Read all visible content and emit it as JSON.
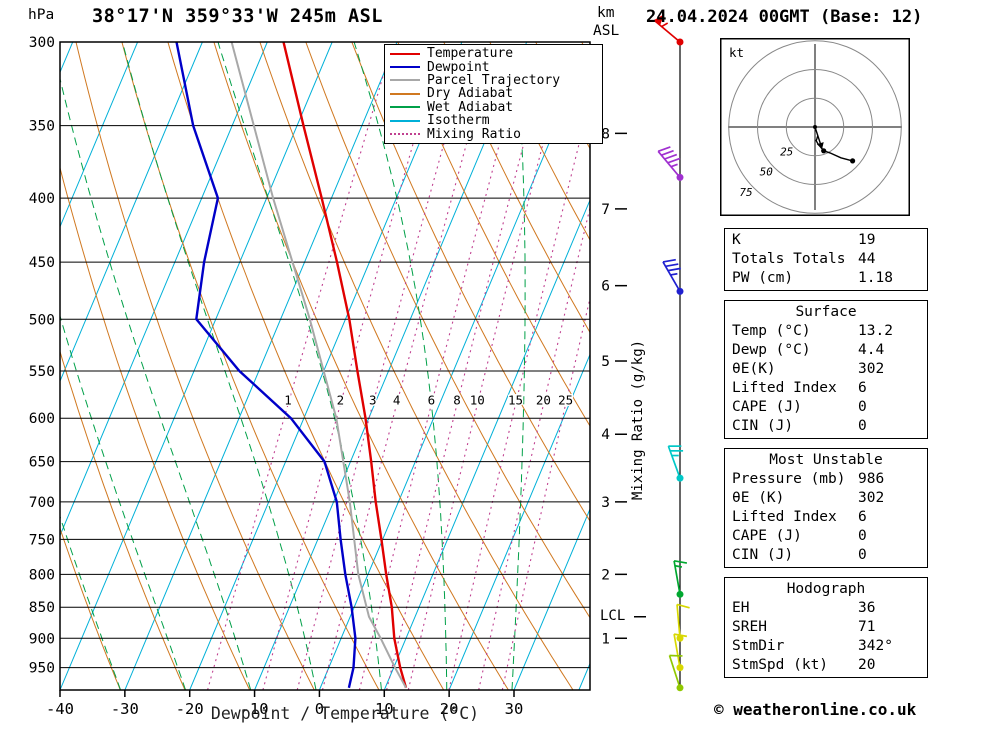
{
  "header": {
    "pressure_unit": "hPa",
    "title": "38°17'N 359°33'W 245m ASL",
    "km_label": "km",
    "asl_label": "ASL",
    "date_title": "24.04.2024 00GMT (Base: 12)"
  },
  "labels": {
    "mixing_ratio_axis": "Mixing Ratio (g/kg)",
    "lcl": "LCL",
    "xaxis": "Dewpoint / Temperature (°C)"
  },
  "footer": {
    "copyright": "© weatheronline.co.uk"
  },
  "legend": [
    {
      "label": "Temperature",
      "color": "#e00000",
      "style": "solid"
    },
    {
      "label": "Dewpoint",
      "color": "#0000c8",
      "style": "solid"
    },
    {
      "label": "Parcel Trajectory",
      "color": "#a8a8a8",
      "style": "solid"
    },
    {
      "label": "Dry Adiabat",
      "color": "#d07820",
      "style": "solid"
    },
    {
      "label": "Wet Adiabat",
      "color": "#00a048",
      "style": "solid"
    },
    {
      "label": "Isotherm",
      "color": "#00b0d8",
      "style": "solid"
    },
    {
      "label": "Mixing Ratio",
      "color": "#c04090",
      "style": "dotted"
    }
  ],
  "chart_data": {
    "type": "line",
    "title": "38°17'N 359°33'W 245m ASL",
    "xlabel": "Dewpoint / Temperature (°C)",
    "ylabel": "hPa",
    "x_ticks": [
      -40,
      -30,
      -20,
      -10,
      0,
      10,
      20,
      30
    ],
    "x_range": [
      -40,
      41.7
    ],
    "pressure_levels": [
      300,
      350,
      400,
      450,
      500,
      550,
      600,
      650,
      700,
      750,
      800,
      850,
      900,
      950
    ],
    "p_top": 300,
    "p_bottom": 990,
    "skew": 0.42,
    "isotherms": {
      "min": -120,
      "max": 40,
      "step": 10
    },
    "dry_adiabats": {
      "min": -40,
      "max": 160,
      "step": 10
    },
    "wet_adiabats": {
      "min": -40,
      "max": 30,
      "step": 10
    },
    "mixing_ratio_lines": [
      1,
      2,
      3,
      4,
      6,
      8,
      10,
      15,
      20,
      25
    ],
    "mixing_ratio_label_pressure": 585,
    "km_ticks": [
      {
        "km": 1,
        "p": 900
      },
      {
        "km": 2,
        "p": 800
      },
      {
        "km": 3,
        "p": 700
      },
      {
        "km": 4,
        "p": 618
      },
      {
        "km": 5,
        "p": 540
      },
      {
        "km": 6,
        "p": 470
      },
      {
        "km": 7,
        "p": 408
      },
      {
        "km": 8,
        "p": 355
      }
    ],
    "lcl_pressure": 865,
    "series": [
      {
        "name": "Temperature",
        "color": "#e00000",
        "width": 2.4,
        "points": [
          [
            986,
            13.2
          ],
          [
            950,
            11.0
          ],
          [
            900,
            8.2
          ],
          [
            850,
            5.8
          ],
          [
            800,
            2.8
          ],
          [
            750,
            -0.2
          ],
          [
            700,
            -3.5
          ],
          [
            650,
            -6.8
          ],
          [
            600,
            -10.5
          ],
          [
            550,
            -14.8
          ],
          [
            500,
            -19.4
          ],
          [
            450,
            -25.0
          ],
          [
            400,
            -31.5
          ],
          [
            350,
            -39.0
          ],
          [
            300,
            -47.5
          ]
        ]
      },
      {
        "name": "Dewpoint",
        "color": "#0000c8",
        "width": 2.4,
        "points": [
          [
            986,
            4.4
          ],
          [
            950,
            3.8
          ],
          [
            900,
            2.2
          ],
          [
            850,
            -0.4
          ],
          [
            800,
            -3.5
          ],
          [
            750,
            -6.5
          ],
          [
            700,
            -9.5
          ],
          [
            650,
            -14.0
          ],
          [
            600,
            -22.0
          ],
          [
            550,
            -33.0
          ],
          [
            500,
            -43.0
          ],
          [
            450,
            -45.5
          ],
          [
            400,
            -47.5
          ],
          [
            350,
            -56.0
          ],
          [
            300,
            -64.0
          ]
        ]
      },
      {
        "name": "Parcel Trajectory",
        "color": "#a8a8a8",
        "width": 2,
        "points": [
          [
            986,
            13.2
          ],
          [
            950,
            10.2
          ],
          [
            900,
            6.1
          ],
          [
            865,
            2.9
          ],
          [
            800,
            -1.5
          ],
          [
            700,
            -7.5
          ],
          [
            600,
            -15.0
          ],
          [
            500,
            -25.5
          ],
          [
            400,
            -39.0
          ],
          [
            300,
            -55.5
          ]
        ]
      }
    ],
    "winds": [
      {
        "p": 300,
        "dir": 310,
        "spd": 55,
        "color": "#e00000"
      },
      {
        "p": 385,
        "dir": 320,
        "spd": 45,
        "color": "#a030d0"
      },
      {
        "p": 475,
        "dir": 330,
        "spd": 35,
        "color": "#2020d0"
      },
      {
        "p": 670,
        "dir": 340,
        "spd": 25,
        "color": "#00c8c8"
      },
      {
        "p": 830,
        "dir": 350,
        "spd": 15,
        "color": "#00a830"
      },
      {
        "p": 900,
        "dir": 355,
        "spd": 10,
        "color": "#d8d800"
      },
      {
        "p": 950,
        "dir": 350,
        "spd": 10,
        "color": "#d8d800"
      },
      {
        "p": 986,
        "dir": 342,
        "spd": 8,
        "color": "#90c800"
      }
    ]
  },
  "hodograph": {
    "unit": "kt",
    "rings": [
      25,
      50,
      75
    ],
    "storm_dir": 342,
    "storm_spd": 20,
    "trace": [
      {
        "dir": 342,
        "spd": 8
      },
      {
        "dir": 350,
        "spd": 10
      },
      {
        "dir": 355,
        "spd": 12
      },
      {
        "dir": 350,
        "spd": 15
      },
      {
        "dir": 340,
        "spd": 22
      },
      {
        "dir": 330,
        "spd": 26
      },
      {
        "dir": 320,
        "spd": 35
      },
      {
        "dir": 312,
        "spd": 44
      }
    ]
  },
  "tables": [
    {
      "title": "",
      "rows": [
        [
          "K",
          "19"
        ],
        [
          "Totals Totals",
          "44"
        ],
        [
          "PW (cm)",
          "1.18"
        ]
      ]
    },
    {
      "title": "Surface",
      "rows": [
        [
          "Temp (°C)",
          "13.2"
        ],
        [
          "Dewp (°C)",
          "4.4"
        ],
        [
          "θE(K)",
          "302"
        ],
        [
          "Lifted Index",
          "6"
        ],
        [
          "CAPE (J)",
          "0"
        ],
        [
          "CIN (J)",
          "0"
        ]
      ]
    },
    {
      "title": "Most Unstable",
      "rows": [
        [
          "Pressure (mb)",
          "986"
        ],
        [
          "θE (K)",
          "302"
        ],
        [
          "Lifted Index",
          "6"
        ],
        [
          "CAPE (J)",
          "0"
        ],
        [
          "CIN (J)",
          "0"
        ]
      ]
    },
    {
      "title": "Hodograph",
      "rows": [
        [
          "EH",
          "36"
        ],
        [
          "SREH",
          "71"
        ],
        [
          "StmDir",
          "342°"
        ],
        [
          "StmSpd (kt)",
          "20"
        ]
      ]
    }
  ]
}
